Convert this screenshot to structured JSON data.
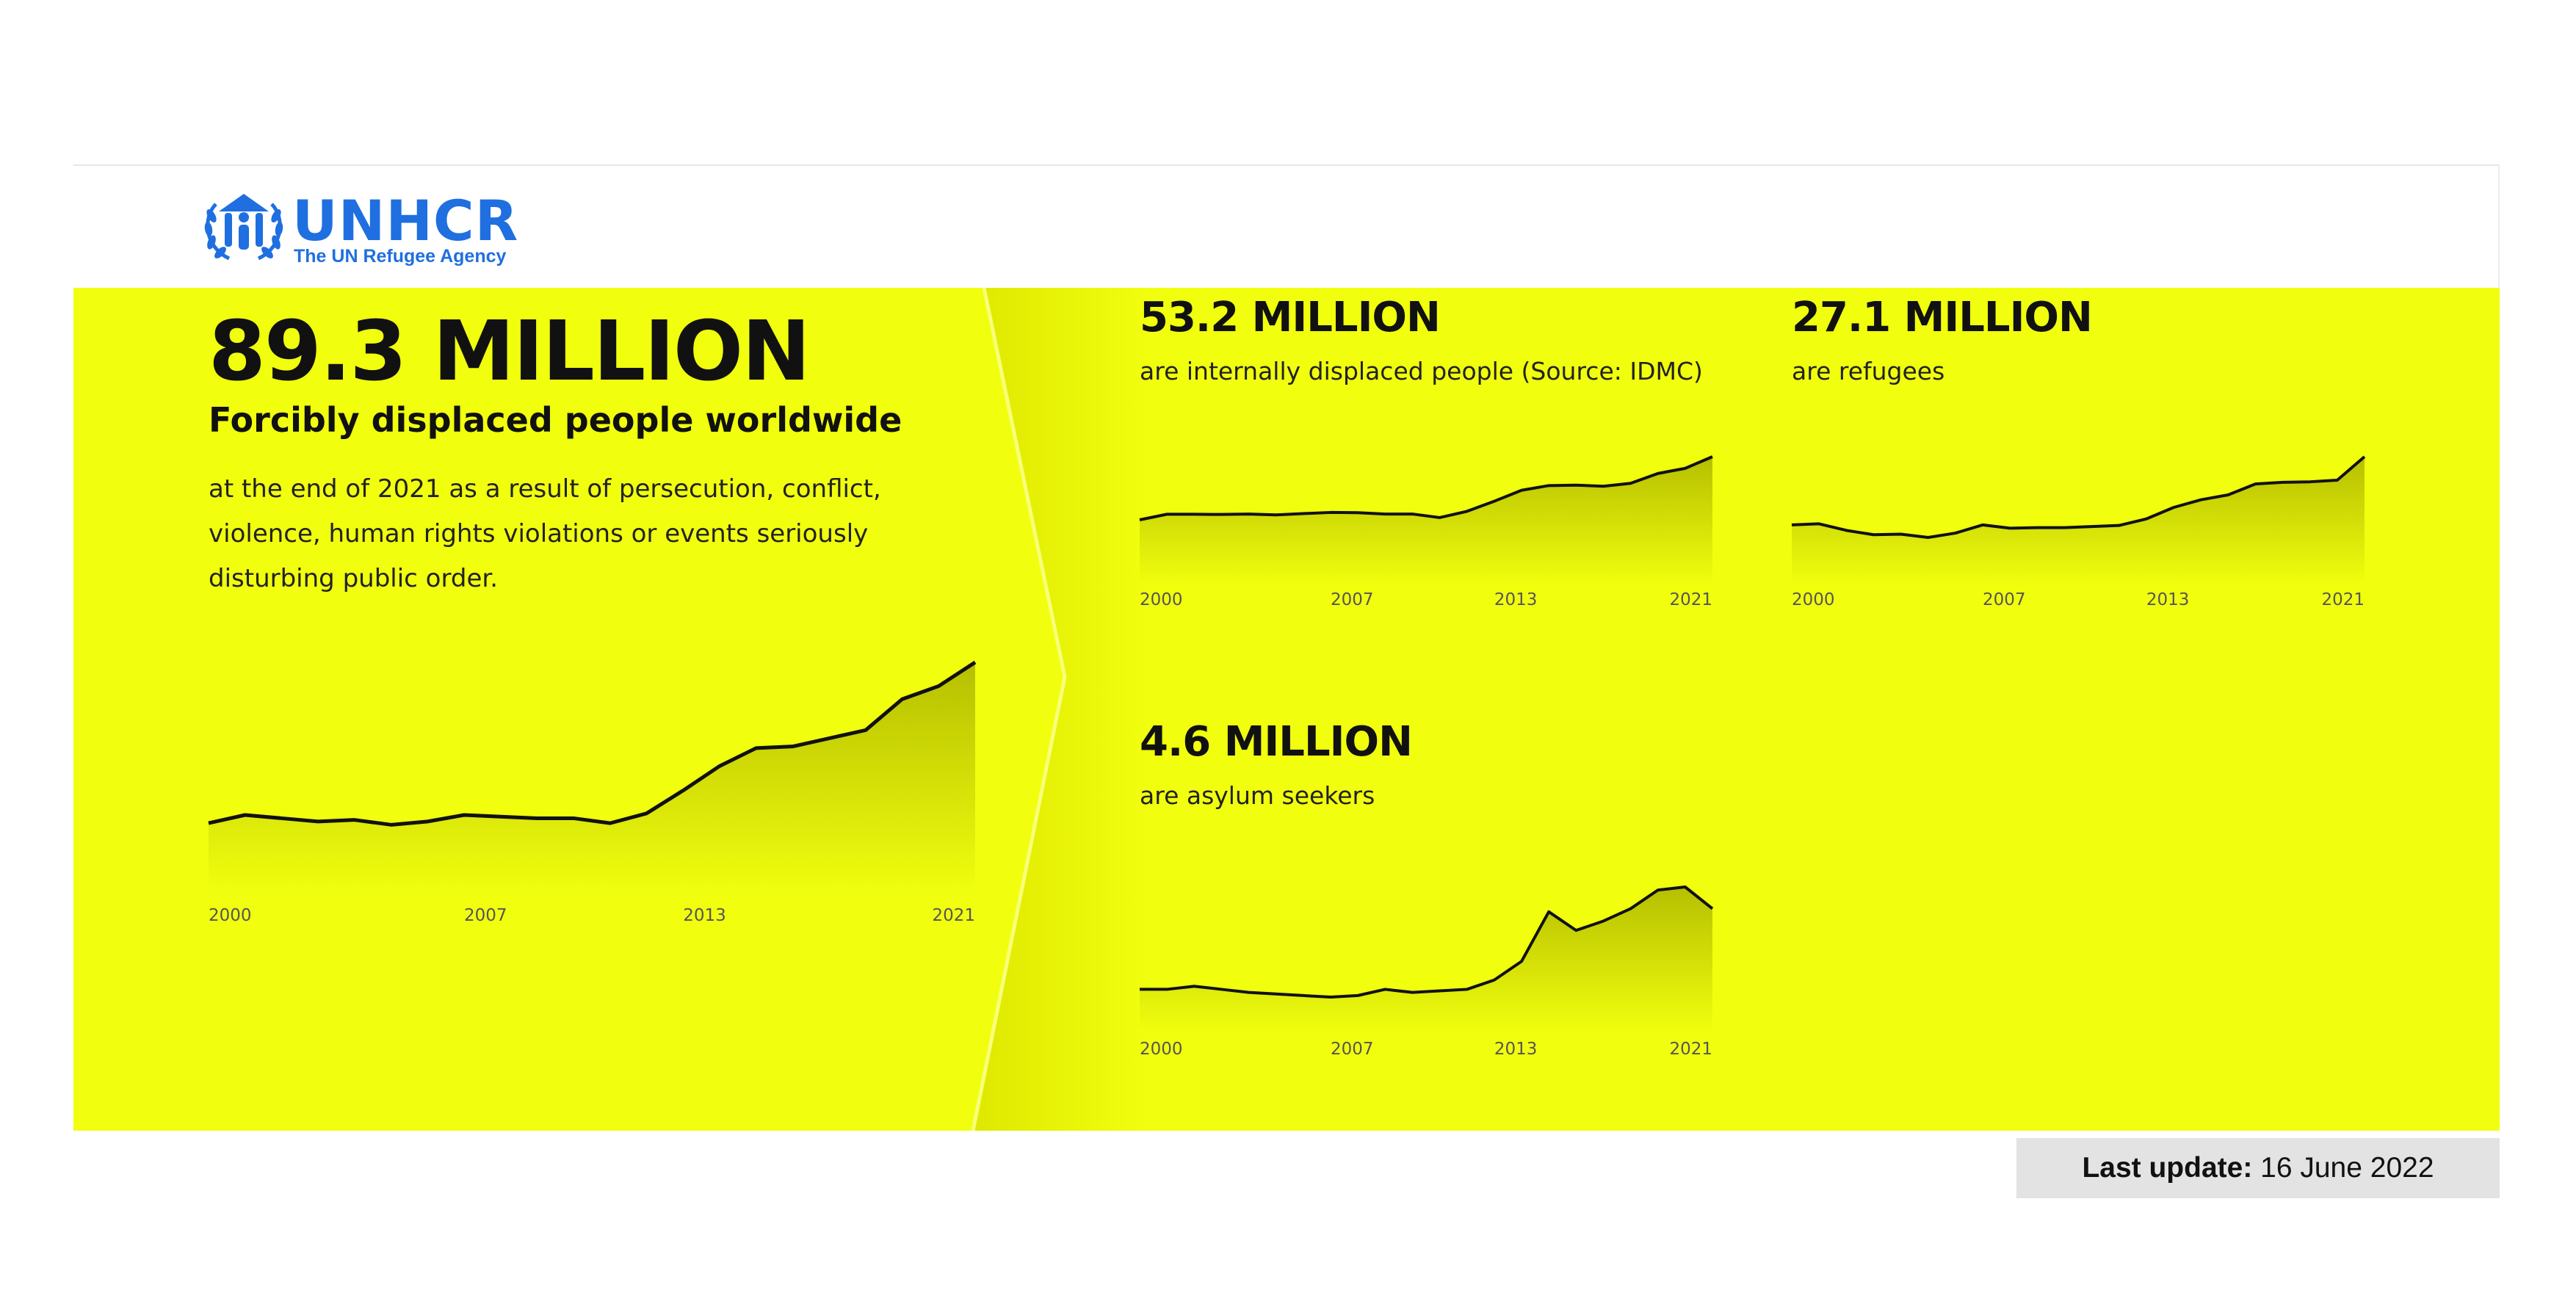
{
  "brand": {
    "name": "UNHCR",
    "tagline": "The UN Refugee Agency",
    "color": "#1f6fe0"
  },
  "headline": {
    "value": "89.3 MILLION",
    "subtitle": "Forcibly displaced people worldwide",
    "description": "at the end of 2021 as a result of persecution, conflict, violence, human rights violations or events seriously disturbing public order."
  },
  "cards": [
    {
      "value": "53.2 MILLION",
      "subtitle": "are internally displaced people (Source: IDMC)"
    },
    {
      "value": "27.1 MILLION",
      "subtitle": "are refugees"
    },
    {
      "value": "4.6 MILLION",
      "subtitle": "are asylum seekers"
    }
  ],
  "footer": {
    "update_label": "Last update:",
    "update_date": "16 June 2022"
  },
  "colors": {
    "panel": "#f1ff0e",
    "line": "#111111",
    "fill": "#b6bf00"
  },
  "chart_data": [
    {
      "type": "area",
      "title": "89.3 MILLION",
      "x": [
        2000,
        2001,
        2002,
        2003,
        2004,
        2005,
        2006,
        2007,
        2008,
        2009,
        2010,
        2011,
        2012,
        2013,
        2014,
        2015,
        2016,
        2017,
        2018,
        2019,
        2020,
        2021
      ],
      "y": [
        40.0,
        42.5,
        41.5,
        40.5,
        41.0,
        39.5,
        40.5,
        42.5,
        42.0,
        41.5,
        41.5,
        40.0,
        43.0,
        50.0,
        57.5,
        63.0,
        63.5,
        66.0,
        68.5,
        78.0,
        82.0,
        89.3
      ],
      "tick_labels": [
        "2000",
        "2007",
        "2013",
        "2021"
      ],
      "ylim": [
        0,
        90
      ],
      "grid": false,
      "legend": false
    },
    {
      "type": "area",
      "title": "53.2 MILLION",
      "x": [
        2000,
        2001,
        2002,
        2003,
        2004,
        2005,
        2006,
        2007,
        2008,
        2009,
        2010,
        2011,
        2012,
        2013,
        2014,
        2015,
        2016,
        2017,
        2018,
        2019,
        2020,
        2021
      ],
      "y": [
        25.0,
        27.5,
        27.5,
        27.4,
        27.6,
        27.2,
        27.8,
        28.3,
        28.2,
        27.6,
        27.6,
        26.0,
        28.8,
        33.3,
        38.2,
        40.3,
        40.5,
        40.0,
        41.3,
        45.7,
        48.0,
        53.2
      ],
      "tick_labels": [
        "2000",
        "2007",
        "2013",
        "2021"
      ],
      "ylim": [
        0,
        55
      ],
      "grid": false,
      "legend": false
    },
    {
      "type": "area",
      "title": "27.1 MILLION",
      "x": [
        2000,
        2001,
        2002,
        2003,
        2004,
        2005,
        2006,
        2007,
        2008,
        2009,
        2010,
        2011,
        2012,
        2013,
        2014,
        2015,
        2016,
        2017,
        2018,
        2019,
        2020,
        2021
      ],
      "y": [
        14.6,
        14.8,
        13.6,
        12.8,
        12.9,
        12.3,
        13.1,
        14.6,
        14.0,
        14.1,
        14.1,
        14.3,
        14.5,
        15.7,
        17.8,
        19.2,
        20.1,
        22.1,
        22.4,
        22.5,
        22.8,
        27.1
      ],
      "tick_labels": [
        "2000",
        "2007",
        "2013",
        "2021"
      ],
      "ylim": [
        0,
        27.1
      ],
      "grid": false,
      "legend": false
    },
    {
      "type": "area",
      "title": "4.6 MILLION",
      "x": [
        2000,
        2001,
        2002,
        2003,
        2004,
        2005,
        2006,
        2007,
        2008,
        2009,
        2010,
        2011,
        2012,
        2013,
        2014,
        2015,
        2016,
        2017,
        2018,
        2019,
        2020,
        2021
      ],
      "y": [
        2.0,
        2.0,
        2.1,
        2.0,
        1.9,
        1.85,
        1.8,
        1.75,
        1.8,
        2.0,
        1.9,
        1.95,
        2.0,
        2.3,
        2.9,
        4.5,
        3.9,
        4.2,
        4.6,
        5.2,
        5.3,
        4.6
      ],
      "tick_labels": [
        "2000",
        "2007",
        "2013",
        "2021"
      ],
      "ylim": [
        0,
        6
      ],
      "grid": false,
      "legend": false
    }
  ]
}
